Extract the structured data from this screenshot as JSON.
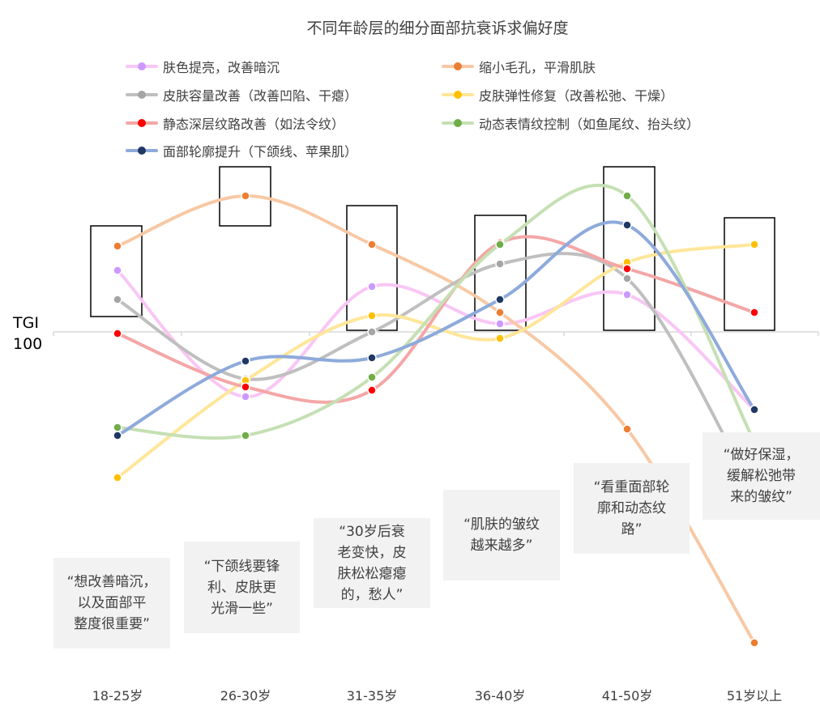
{
  "chart_data": {
    "type": "line",
    "title": "不同年龄层的细分面部抗衰诉求偏好度",
    "ylabel": "TGI",
    "reference_line": {
      "value": 100,
      "label": "100"
    },
    "categories": [
      "18-25岁",
      "26-30岁",
      "31-35岁",
      "36-40岁",
      "41-50岁",
      "51岁以上"
    ],
    "smooth": true,
    "legend_position": "top",
    "series": [
      {
        "name": "肤色提亮，改善暗沉",
        "line_color": "#f9c6f5",
        "marker_color": "#cc99ff",
        "values": [
          119,
          80,
          114,
          102.5,
          111.5,
          76
        ]
      },
      {
        "name": "缩小毛孔，平滑肌肤",
        "line_color": "#f8c8a4",
        "marker_color": "#ed7d31",
        "values": [
          126.5,
          142,
          127,
          106,
          70,
          4
        ]
      },
      {
        "name": "皮肤容量改善（改善凹陷、干瘪）",
        "line_color": "#bfbfbf",
        "marker_color": "#a5a5a5",
        "values": [
          110,
          85.5,
          100,
          121,
          116.5,
          50
        ]
      },
      {
        "name": "皮肤弹性修复（改善松弛、干燥）",
        "line_color": "#ffe699",
        "marker_color": "#ffc000",
        "values": [
          55,
          85,
          105,
          98,
          121.5,
          127
        ]
      },
      {
        "name": "静态深层纹路改善（如法令纹）",
        "line_color": "#f4a6a6",
        "marker_color": "#ff0000",
        "values": [
          99.5,
          83,
          82,
          127.5,
          119.5,
          106
        ]
      },
      {
        "name": "动态表情纹控制（如鱼尾纹、抬头纹）",
        "line_color": "#c5e0b4",
        "marker_color": "#70ad47",
        "values": [
          70.5,
          68,
          86,
          127,
          142,
          66
        ]
      },
      {
        "name": "面部轮廓提升（下颌线、苹果肌）",
        "line_color": "#8eaadb",
        "marker_color": "#1f3864",
        "values": [
          68,
          91,
          92,
          110,
          133,
          76
        ]
      }
    ],
    "annotations": [
      "“想改善暗沉，\n以及面部平\n整度很重要”",
      "“下颌线要锋\n利、皮肤更\n光滑一些”",
      "“30岁后衰\n老变快，皮\n肤松松瘪瘪\n的，愁人”",
      "“肌肤的皱纹\n越来越多”",
      "“看重面部轮\n廓和动态纹\n路”",
      "“做好保湿，\n缓解松弛带\n来的皱纹”"
    ]
  }
}
